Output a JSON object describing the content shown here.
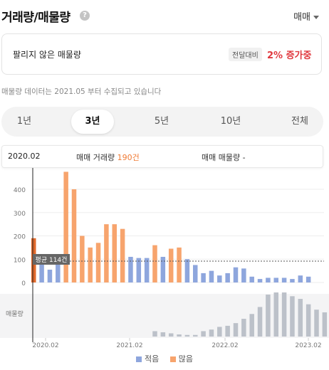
{
  "header": {
    "title": "거래량/매물량",
    "help_icon": "question-circle-icon",
    "type_select": "매매"
  },
  "summary": {
    "label": "팔리지 않은 매물량",
    "badge": "전달대비",
    "change": "2% 증가중"
  },
  "notice": "매물량 데이터는 2021.05 부터 수집되고 있습니다",
  "tabs": [
    {
      "label": "1년"
    },
    {
      "label": "3년"
    },
    {
      "label": "5년"
    },
    {
      "label": "10년"
    },
    {
      "label": "전체"
    }
  ],
  "active_tab": 1,
  "info": {
    "date": "2020.02",
    "volume_label": "매매 거래량",
    "volume_value": "190건",
    "listing_label": "매매 매물량",
    "listing_value": "-"
  },
  "colors": {
    "low": "#8ea6dd",
    "high": "#f7a46d",
    "selected": "#e0682a",
    "listing": "#bcc1c9",
    "change": "#e0383e"
  },
  "chart_data": {
    "type": "bar",
    "x_ticks": [
      "2020.02",
      "2021.02",
      "2022.02",
      "2023.02"
    ],
    "y_ticks": [
      0,
      100,
      200,
      300,
      400
    ],
    "ylim": [
      0,
      480
    ],
    "average": 114,
    "average_label": "평균 114건",
    "secondary_label": "매물량",
    "legend": [
      {
        "name": "적음"
      },
      {
        "name": "많음"
      }
    ],
    "volume": [
      190,
      105,
      55,
      110,
      475,
      400,
      200,
      150,
      170,
      250,
      250,
      230,
      110,
      105,
      105,
      160,
      110,
      145,
      150,
      100,
      75,
      40,
      50,
      30,
      40,
      65,
      60,
      25,
      15,
      20,
      20,
      20,
      15,
      30,
      25
    ],
    "listing": [
      null,
      null,
      null,
      null,
      null,
      null,
      null,
      null,
      null,
      null,
      null,
      null,
      null,
      null,
      null,
      10,
      8,
      6,
      4,
      3,
      3,
      10,
      13,
      18,
      20,
      25,
      33,
      42,
      55,
      78,
      82,
      82,
      75,
      70,
      60,
      50,
      45,
      45
    ]
  }
}
